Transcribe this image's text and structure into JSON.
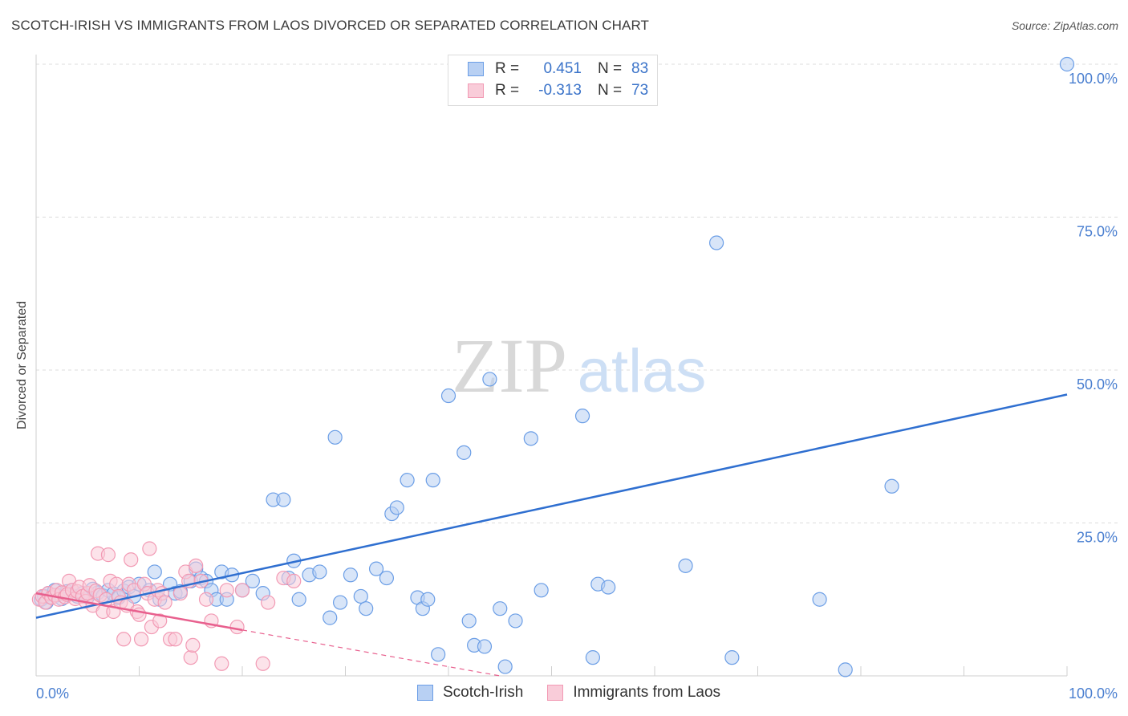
{
  "title": "SCOTCH-IRISH VS IMMIGRANTS FROM LAOS DIVORCED OR SEPARATED CORRELATION CHART",
  "source": "Source: ZipAtlas.com",
  "watermark": {
    "zip": "ZIP",
    "atlas": "atlas"
  },
  "legend": {
    "rows": [
      {
        "r_label": "R =",
        "r_value": "0.451",
        "n_label": "N =",
        "n_value": "83",
        "color": "#6b9ee6",
        "fill": "#b8d0f3"
      },
      {
        "r_label": "R =",
        "r_value": "-0.313",
        "n_label": "N =",
        "n_value": "73",
        "color": "#f29ab4",
        "fill": "#f9ccd9"
      }
    ]
  },
  "bottom_legend": [
    {
      "label": "Scotch-Irish",
      "color": "#6b9ee6",
      "fill": "#b8d0f3"
    },
    {
      "label": "Immigrants from Laos",
      "color": "#f29ab4",
      "fill": "#f9ccd9"
    }
  ],
  "chart_data": {
    "type": "scatter",
    "title": "SCOTCH-IRISH VS IMMIGRANTS FROM LAOS DIVORCED OR SEPARATED CORRELATION CHART",
    "xlabel": "",
    "ylabel": "Divorced or Separated",
    "xlim": [
      0,
      100
    ],
    "ylim": [
      0,
      100
    ],
    "x_tick_labels": [
      "0.0%",
      "100.0%"
    ],
    "y_tick_labels": [
      {
        "value": 100,
        "label": "100.0%"
      },
      {
        "value": 75,
        "label": "75.0%"
      },
      {
        "value": 50,
        "label": "50.0%"
      },
      {
        "value": 25,
        "label": "25.0%"
      }
    ],
    "grid": true,
    "series": [
      {
        "name": "Scotch-Irish",
        "color": "#6b9ee6",
        "fill": "#b8d0f3",
        "line_color": "#2f6fd0",
        "trend": {
          "x": [
            0,
            100
          ],
          "y": [
            9.5,
            46.0
          ]
        },
        "points": [
          [
            0.5,
            12.5
          ],
          [
            0.8,
            13.0
          ],
          [
            1.0,
            12.0
          ],
          [
            1.2,
            13.5
          ],
          [
            1.5,
            12.8
          ],
          [
            1.8,
            14.0
          ],
          [
            2.0,
            13.2
          ],
          [
            2.5,
            12.6
          ],
          [
            3.0,
            13.8
          ],
          [
            3.5,
            14.0
          ],
          [
            4.0,
            13.0
          ],
          [
            4.5,
            13.5
          ],
          [
            5.0,
            12.9
          ],
          [
            5.5,
            14.2
          ],
          [
            6.0,
            13.6
          ],
          [
            6.5,
            13.1
          ],
          [
            7.0,
            14.0
          ],
          [
            7.5,
            13.4
          ],
          [
            8.0,
            12.8
          ],
          [
            8.5,
            13.9
          ],
          [
            9.0,
            14.5
          ],
          [
            9.5,
            13.0
          ],
          [
            10.0,
            15.0
          ],
          [
            11.0,
            14.0
          ],
          [
            11.5,
            17.0
          ],
          [
            12.0,
            12.5
          ],
          [
            13.0,
            15.0
          ],
          [
            13.5,
            13.5
          ],
          [
            14.0,
            13.8
          ],
          [
            15.0,
            15.5
          ],
          [
            15.5,
            17.5
          ],
          [
            16.0,
            16.0
          ],
          [
            16.5,
            15.5
          ],
          [
            17.0,
            14.0
          ],
          [
            17.5,
            12.5
          ],
          [
            18.0,
            17.0
          ],
          [
            18.5,
            12.5
          ],
          [
            19.0,
            16.5
          ],
          [
            20.0,
            14.0
          ],
          [
            21.0,
            15.5
          ],
          [
            22.0,
            13.5
          ],
          [
            23.0,
            28.8
          ],
          [
            24.0,
            28.8
          ],
          [
            24.5,
            16.0
          ],
          [
            25.0,
            18.8
          ],
          [
            25.5,
            12.5
          ],
          [
            26.5,
            16.5
          ],
          [
            27.5,
            17.0
          ],
          [
            28.5,
            9.5
          ],
          [
            29.0,
            39.0
          ],
          [
            29.5,
            12.0
          ],
          [
            30.5,
            16.5
          ],
          [
            31.5,
            13.0
          ],
          [
            32.0,
            11.0
          ],
          [
            33.0,
            17.5
          ],
          [
            34.0,
            16.0
          ],
          [
            34.5,
            26.5
          ],
          [
            35.0,
            27.5
          ],
          [
            36.0,
            32.0
          ],
          [
            37.0,
            12.8
          ],
          [
            37.5,
            11.0
          ],
          [
            38.0,
            12.5
          ],
          [
            38.5,
            32.0
          ],
          [
            39.0,
            3.5
          ],
          [
            40.0,
            45.8
          ],
          [
            41.5,
            36.5
          ],
          [
            42.0,
            9.0
          ],
          [
            42.5,
            5.0
          ],
          [
            43.5,
            4.8
          ],
          [
            44.0,
            48.5
          ],
          [
            45.0,
            11.0
          ],
          [
            45.5,
            1.5
          ],
          [
            46.5,
            9.0
          ],
          [
            48.0,
            38.8
          ],
          [
            49.0,
            14.0
          ],
          [
            53.0,
            42.5
          ],
          [
            54.0,
            3.0
          ],
          [
            54.5,
            15.0
          ],
          [
            55.5,
            14.5
          ],
          [
            63.0,
            18.0
          ],
          [
            66.0,
            70.8
          ],
          [
            67.5,
            3.0
          ],
          [
            76.0,
            12.5
          ],
          [
            78.5,
            1.0
          ],
          [
            83.0,
            31.0
          ],
          [
            100.0,
            100.0
          ]
        ]
      },
      {
        "name": "Immigrants from Laos",
        "color": "#f29ab4",
        "fill": "#f9ccd9",
        "line_color": "#e8608e",
        "trend": {
          "x": [
            0,
            20
          ],
          "y": [
            13.5,
            7.5
          ]
        },
        "trend_dashed": {
          "x": [
            20,
            45
          ],
          "y": [
            7.5,
            0.0
          ]
        },
        "points": [
          [
            0.3,
            12.5
          ],
          [
            0.6,
            13.0
          ],
          [
            0.9,
            12.0
          ],
          [
            1.2,
            13.5
          ],
          [
            1.5,
            12.8
          ],
          [
            1.8,
            13.2
          ],
          [
            2.0,
            14.0
          ],
          [
            2.2,
            12.5
          ],
          [
            2.5,
            13.6
          ],
          [
            2.8,
            12.9
          ],
          [
            3.0,
            13.3
          ],
          [
            3.2,
            15.5
          ],
          [
            3.5,
            14.0
          ],
          [
            3.8,
            12.6
          ],
          [
            4.0,
            13.8
          ],
          [
            4.2,
            14.5
          ],
          [
            4.5,
            13.0
          ],
          [
            4.8,
            12.2
          ],
          [
            5.0,
            13.5
          ],
          [
            5.2,
            14.8
          ],
          [
            5.5,
            11.5
          ],
          [
            5.8,
            13.9
          ],
          [
            6.0,
            20.0
          ],
          [
            6.2,
            13.2
          ],
          [
            6.5,
            10.5
          ],
          [
            6.8,
            12.5
          ],
          [
            7.0,
            19.8
          ],
          [
            7.2,
            15.5
          ],
          [
            7.5,
            10.5
          ],
          [
            7.8,
            15.0
          ],
          [
            8.0,
            13.0
          ],
          [
            8.2,
            12.0
          ],
          [
            8.5,
            6.0
          ],
          [
            8.8,
            11.5
          ],
          [
            9.0,
            15.0
          ],
          [
            9.2,
            19.0
          ],
          [
            9.5,
            14.0
          ],
          [
            9.8,
            10.5
          ],
          [
            10.0,
            10.0
          ],
          [
            10.2,
            6.0
          ],
          [
            10.5,
            15.0
          ],
          [
            10.8,
            13.5
          ],
          [
            11.0,
            20.8
          ],
          [
            11.2,
            8.0
          ],
          [
            11.5,
            12.5
          ],
          [
            11.8,
            14.0
          ],
          [
            12.0,
            9.0
          ],
          [
            12.2,
            13.5
          ],
          [
            12.5,
            12.0
          ],
          [
            13.0,
            6.0
          ],
          [
            13.5,
            6.0
          ],
          [
            14.0,
            13.5
          ],
          [
            14.5,
            17.0
          ],
          [
            14.8,
            15.5
          ],
          [
            15.0,
            3.0
          ],
          [
            15.2,
            5.0
          ],
          [
            15.5,
            18.0
          ],
          [
            16.0,
            15.5
          ],
          [
            16.5,
            12.5
          ],
          [
            17.0,
            9.0
          ],
          [
            18.0,
            2.0
          ],
          [
            18.5,
            14.0
          ],
          [
            19.5,
            8.0
          ],
          [
            20.0,
            14.0
          ],
          [
            22.0,
            2.0
          ],
          [
            22.5,
            12.0
          ],
          [
            24.0,
            16.0
          ],
          [
            25.0,
            15.5
          ]
        ]
      }
    ]
  }
}
